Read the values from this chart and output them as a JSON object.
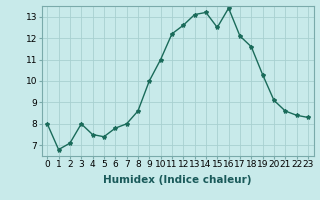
{
  "x": [
    0,
    1,
    2,
    3,
    4,
    5,
    6,
    7,
    8,
    9,
    10,
    11,
    12,
    13,
    14,
    15,
    16,
    17,
    18,
    19,
    20,
    21,
    22,
    23
  ],
  "y": [
    8.0,
    6.8,
    7.1,
    8.0,
    7.5,
    7.4,
    7.8,
    8.0,
    8.6,
    10.0,
    11.0,
    12.2,
    12.6,
    13.1,
    13.2,
    12.5,
    13.4,
    12.1,
    11.6,
    10.3,
    9.1,
    8.6,
    8.4,
    8.3
  ],
  "line_color": "#1a6b5a",
  "marker": "*",
  "marker_size": 3,
  "bg_color": "#c8eaea",
  "grid_color": "#a8d0d0",
  "xlabel": "Humidex (Indice chaleur)",
  "ylim": [
    6.5,
    13.5
  ],
  "xlim": [
    -0.5,
    23.5
  ],
  "yticks": [
    7,
    8,
    9,
    10,
    11,
    12,
    13
  ],
  "xticks": [
    0,
    1,
    2,
    3,
    4,
    5,
    6,
    7,
    8,
    9,
    10,
    11,
    12,
    13,
    14,
    15,
    16,
    17,
    18,
    19,
    20,
    21,
    22,
    23
  ],
  "xtick_labels": [
    "0",
    "1",
    "2",
    "3",
    "4",
    "5",
    "6",
    "7",
    "8",
    "9",
    "10",
    "11",
    "12",
    "13",
    "14",
    "15",
    "16",
    "17",
    "18",
    "19",
    "20",
    "21",
    "22",
    "23"
  ],
  "tick_fontsize": 6.5,
  "xlabel_fontsize": 7.5
}
